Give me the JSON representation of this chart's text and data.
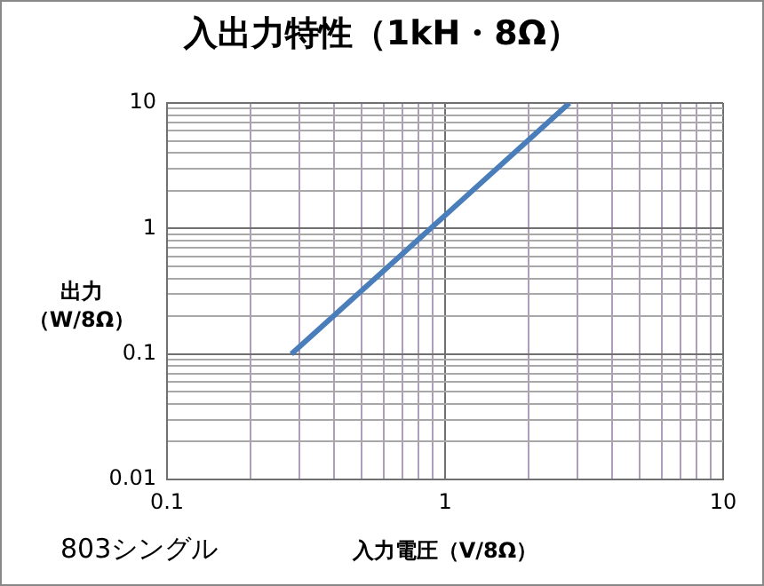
{
  "chart_data": {
    "type": "line",
    "title": "入出力特性（1kH・8Ω）",
    "xlabel": "入力電圧（V/8Ω）",
    "ylabel": "出力（W/8Ω）",
    "annotations": [
      "803シングル"
    ],
    "log": "xy",
    "grid": true,
    "legend": false,
    "marker": "none",
    "line_style": "solid",
    "xlim": [
      0.1,
      10
    ],
    "ylim": [
      0.01,
      10
    ],
    "xticks": [
      0.1,
      {
        "value": 0.2,
        "label": null
      },
      {
        "value": 0.3,
        "label": null
      },
      {
        "value": 0.4,
        "label": null
      },
      {
        "value": 0.5,
        "label": null
      },
      {
        "value": 0.6,
        "label": null
      },
      {
        "value": 0.7,
        "label": null
      },
      {
        "value": 0.8,
        "label": null
      },
      {
        "value": 0.9,
        "label": null
      },
      1,
      {
        "value": 2,
        "label": null
      },
      {
        "value": 3,
        "label": null
      },
      {
        "value": 4,
        "label": null
      },
      {
        "value": 5,
        "label": null
      },
      {
        "value": 6,
        "label": null
      },
      {
        "value": 7,
        "label": null
      },
      {
        "value": 8,
        "label": null
      },
      {
        "value": 9,
        "label": null
      },
      10
    ],
    "yticks": [
      0.01,
      {
        "value": 0.02,
        "label": null
      },
      {
        "value": 0.03,
        "label": null
      },
      {
        "value": 0.04,
        "label": null
      },
      {
        "value": 0.05,
        "label": null
      },
      {
        "value": 0.06,
        "label": null
      },
      {
        "value": 0.07,
        "label": null
      },
      {
        "value": 0.08,
        "label": null
      },
      {
        "value": 0.09,
        "label": null
      },
      0.1,
      {
        "value": 0.2,
        "label": null
      },
      {
        "value": 0.3,
        "label": null
      },
      {
        "value": 0.4,
        "label": null
      },
      {
        "value": 0.5,
        "label": null
      },
      {
        "value": 0.6,
        "label": null
      },
      {
        "value": 0.7,
        "label": null
      },
      {
        "value": 0.8,
        "label": null
      },
      {
        "value": 0.9,
        "label": null
      },
      1,
      {
        "value": 2,
        "label": null
      },
      {
        "value": 3,
        "label": null
      },
      {
        "value": 4,
        "label": null
      },
      {
        "value": 5,
        "label": null
      },
      {
        "value": 6,
        "label": null
      },
      {
        "value": 7,
        "label": null
      },
      {
        "value": 8,
        "label": null
      },
      {
        "value": 9,
        "label": null
      },
      10
    ],
    "series": [
      {
        "color": "#4a7ebb",
        "x": [
          0.28,
          0.9,
          2.8
        ],
        "values": [
          0.1,
          1.03,
          10
        ]
      }
    ]
  }
}
